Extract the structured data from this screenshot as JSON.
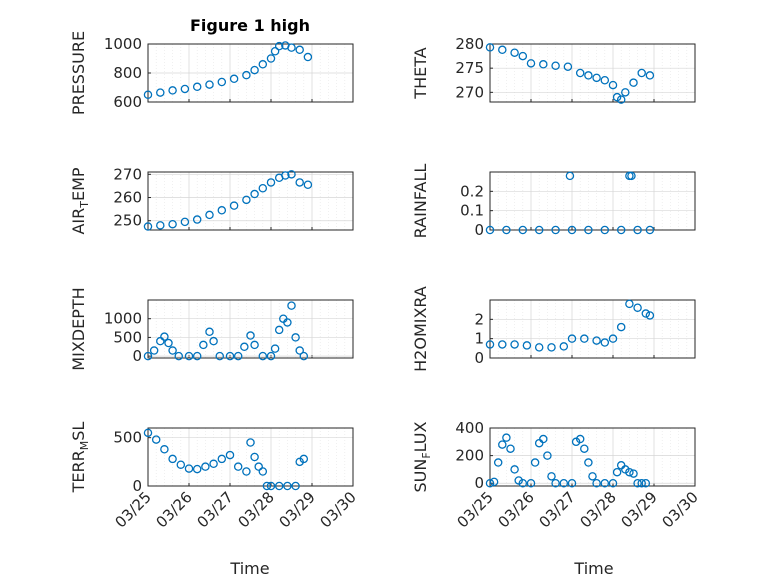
{
  "figure_title": "Figure 1 high",
  "chart_data": [
    {
      "type": "scatter",
      "ylabel": "PRESSURE",
      "xlim": [
        "03/25",
        "03/30"
      ],
      "ylim": [
        600,
        1000
      ],
      "yticks": [
        600,
        800,
        1000
      ],
      "xticks": [
        "03/25",
        "03/26",
        "03/27",
        "03/28",
        "03/29",
        "03/30"
      ],
      "grid": true,
      "marker": "circle",
      "series": [
        {
          "x": [
            0.0,
            0.3,
            0.6,
            0.9,
            1.2,
            1.5,
            1.8,
            2.1,
            2.4,
            2.6,
            2.8,
            3.0,
            3.1,
            3.2,
            3.35,
            3.5,
            3.7,
            3.9
          ],
          "y": [
            650,
            665,
            680,
            690,
            705,
            720,
            738,
            760,
            785,
            820,
            860,
            900,
            950,
            985,
            990,
            975,
            960,
            910
          ]
        }
      ]
    },
    {
      "type": "scatter",
      "ylabel": "THETA",
      "xlim": [
        "03/25",
        "03/30"
      ],
      "ylim": [
        268,
        280
      ],
      "yticks": [
        270,
        275,
        280
      ],
      "xticks": [
        "03/25",
        "03/26",
        "03/27",
        "03/28",
        "03/29",
        "03/30"
      ],
      "grid": true,
      "marker": "circle",
      "series": [
        {
          "x": [
            0.0,
            0.3,
            0.6,
            0.8,
            1.0,
            1.3,
            1.6,
            1.9,
            2.2,
            2.4,
            2.6,
            2.8,
            3.0,
            3.1,
            3.2,
            3.3,
            3.5,
            3.7,
            3.9
          ],
          "y": [
            279.3,
            278.8,
            278.2,
            277.5,
            276.0,
            275.8,
            275.5,
            275.3,
            274.0,
            273.5,
            273.0,
            272.5,
            271.5,
            269.0,
            268.5,
            270.0,
            272.0,
            274.0,
            273.5
          ]
        }
      ]
    },
    {
      "type": "scatter",
      "ylabel": "AIR_TEMP",
      "xlim": [
        "03/25",
        "03/30"
      ],
      "ylim": [
        246,
        271
      ],
      "yticks": [
        250,
        260,
        270
      ],
      "xticks": [
        "03/25",
        "03/26",
        "03/27",
        "03/28",
        "03/29",
        "03/30"
      ],
      "grid": true,
      "marker": "circle",
      "series": [
        {
          "x": [
            0.0,
            0.3,
            0.6,
            0.9,
            1.2,
            1.5,
            1.8,
            2.1,
            2.4,
            2.6,
            2.8,
            3.0,
            3.2,
            3.35,
            3.5,
            3.7,
            3.9
          ],
          "y": [
            247.5,
            248.0,
            248.5,
            249.5,
            250.5,
            252.5,
            254.5,
            256.5,
            259.0,
            261.5,
            264.0,
            266.5,
            268.5,
            269.5,
            270.0,
            266.5,
            265.5
          ]
        }
      ]
    },
    {
      "type": "scatter",
      "ylabel": "RAINFALL",
      "xlim": [
        "03/25",
        "03/30"
      ],
      "ylim": [
        0,
        0.3
      ],
      "yticks": [
        0,
        0.1,
        0.2
      ],
      "xticks": [
        "03/25",
        "03/26",
        "03/27",
        "03/28",
        "03/29",
        "03/30"
      ],
      "grid": true,
      "marker": "circle",
      "series": [
        {
          "x": [
            0.0,
            0.4,
            0.8,
            1.2,
            1.6,
            2.0,
            2.4,
            2.8,
            3.2,
            3.6,
            3.9,
            1.95,
            3.4,
            3.45
          ],
          "y": [
            0,
            0,
            0,
            0,
            0,
            0,
            0,
            0,
            0,
            0,
            0,
            0.28,
            0.28,
            0.28
          ]
        }
      ]
    },
    {
      "type": "scatter",
      "ylabel": "MIXDEPTH",
      "xlim": [
        "03/25",
        "03/30"
      ],
      "ylim": [
        -50,
        1500
      ],
      "yticks": [
        0,
        500,
        1000
      ],
      "xticks": [
        "03/25",
        "03/26",
        "03/27",
        "03/28",
        "03/29",
        "03/30"
      ],
      "grid": true,
      "marker": "circle",
      "series": [
        {
          "x": [
            0.0,
            0.15,
            0.3,
            0.4,
            0.5,
            0.6,
            0.75,
            1.0,
            1.2,
            1.35,
            1.5,
            1.6,
            1.75,
            2.0,
            2.2,
            2.35,
            2.5,
            2.6,
            2.8,
            3.0,
            3.1,
            3.2,
            3.3,
            3.4,
            3.5,
            3.6,
            3.7,
            3.8
          ],
          "y": [
            0,
            150,
            400,
            520,
            350,
            150,
            0,
            0,
            0,
            300,
            650,
            400,
            0,
            0,
            0,
            250,
            550,
            300,
            0,
            0,
            200,
            700,
            1000,
            900,
            1350,
            500,
            150,
            0
          ]
        }
      ]
    },
    {
      "type": "scatter",
      "ylabel": "H2OMIXRA",
      "xlim": [
        "03/25",
        "03/30"
      ],
      "ylim": [
        0,
        3
      ],
      "yticks": [
        0,
        1,
        2
      ],
      "xticks": [
        "03/25",
        "03/26",
        "03/27",
        "03/28",
        "03/29",
        "03/30"
      ],
      "grid": true,
      "marker": "circle",
      "series": [
        {
          "x": [
            0.0,
            0.3,
            0.6,
            0.9,
            1.2,
            1.5,
            1.8,
            2.0,
            2.3,
            2.6,
            2.8,
            3.0,
            3.2,
            3.4,
            3.6,
            3.8,
            3.9
          ],
          "y": [
            0.7,
            0.7,
            0.7,
            0.65,
            0.55,
            0.55,
            0.6,
            1.0,
            1.0,
            0.9,
            0.8,
            1.0,
            1.6,
            2.8,
            2.6,
            2.3,
            2.2
          ]
        }
      ]
    },
    {
      "type": "scatter",
      "ylabel": "TERR_MSL",
      "xlim": [
        "03/25",
        "03/30"
      ],
      "ylim": [
        0,
        600
      ],
      "yticks": [
        0,
        500
      ],
      "xticks": [
        "03/25",
        "03/26",
        "03/27",
        "03/28",
        "03/29",
        "03/30"
      ],
      "grid": true,
      "marker": "circle",
      "series": [
        {
          "x": [
            0.0,
            0.2,
            0.4,
            0.6,
            0.8,
            1.0,
            1.2,
            1.4,
            1.6,
            1.8,
            2.0,
            2.2,
            2.4,
            2.5,
            2.6,
            2.7,
            2.8,
            2.9,
            3.0,
            3.2,
            3.4,
            3.6,
            3.7,
            3.8
          ],
          "y": [
            550,
            480,
            380,
            280,
            220,
            180,
            175,
            200,
            230,
            280,
            320,
            200,
            150,
            450,
            300,
            200,
            150,
            0,
            0,
            0,
            0,
            0,
            250,
            280
          ]
        }
      ]
    },
    {
      "type": "scatter",
      "ylabel": "SUN_FLUX",
      "xlim": [
        "03/25",
        "03/30"
      ],
      "ylim": [
        -20,
        400
      ],
      "yticks": [
        0,
        200,
        400
      ],
      "xticks": [
        "03/25",
        "03/26",
        "03/27",
        "03/28",
        "03/29",
        "03/30"
      ],
      "grid": true,
      "marker": "circle",
      "series": [
        {
          "x": [
            0.0,
            0.1,
            0.2,
            0.3,
            0.4,
            0.5,
            0.6,
            0.7,
            0.8,
            1.0,
            1.1,
            1.2,
            1.3,
            1.4,
            1.5,
            1.6,
            1.8,
            2.0,
            2.1,
            2.2,
            2.3,
            2.4,
            2.5,
            2.6,
            2.8,
            3.0,
            3.1,
            3.2,
            3.3,
            3.4,
            3.5,
            3.6,
            3.7,
            3.8
          ],
          "y": [
            0,
            10,
            150,
            280,
            330,
            250,
            100,
            20,
            0,
            0,
            150,
            290,
            320,
            200,
            50,
            0,
            0,
            0,
            300,
            320,
            250,
            150,
            50,
            0,
            0,
            0,
            80,
            130,
            100,
            80,
            70,
            0,
            0,
            0
          ]
        }
      ]
    }
  ],
  "xlabel": "Time"
}
